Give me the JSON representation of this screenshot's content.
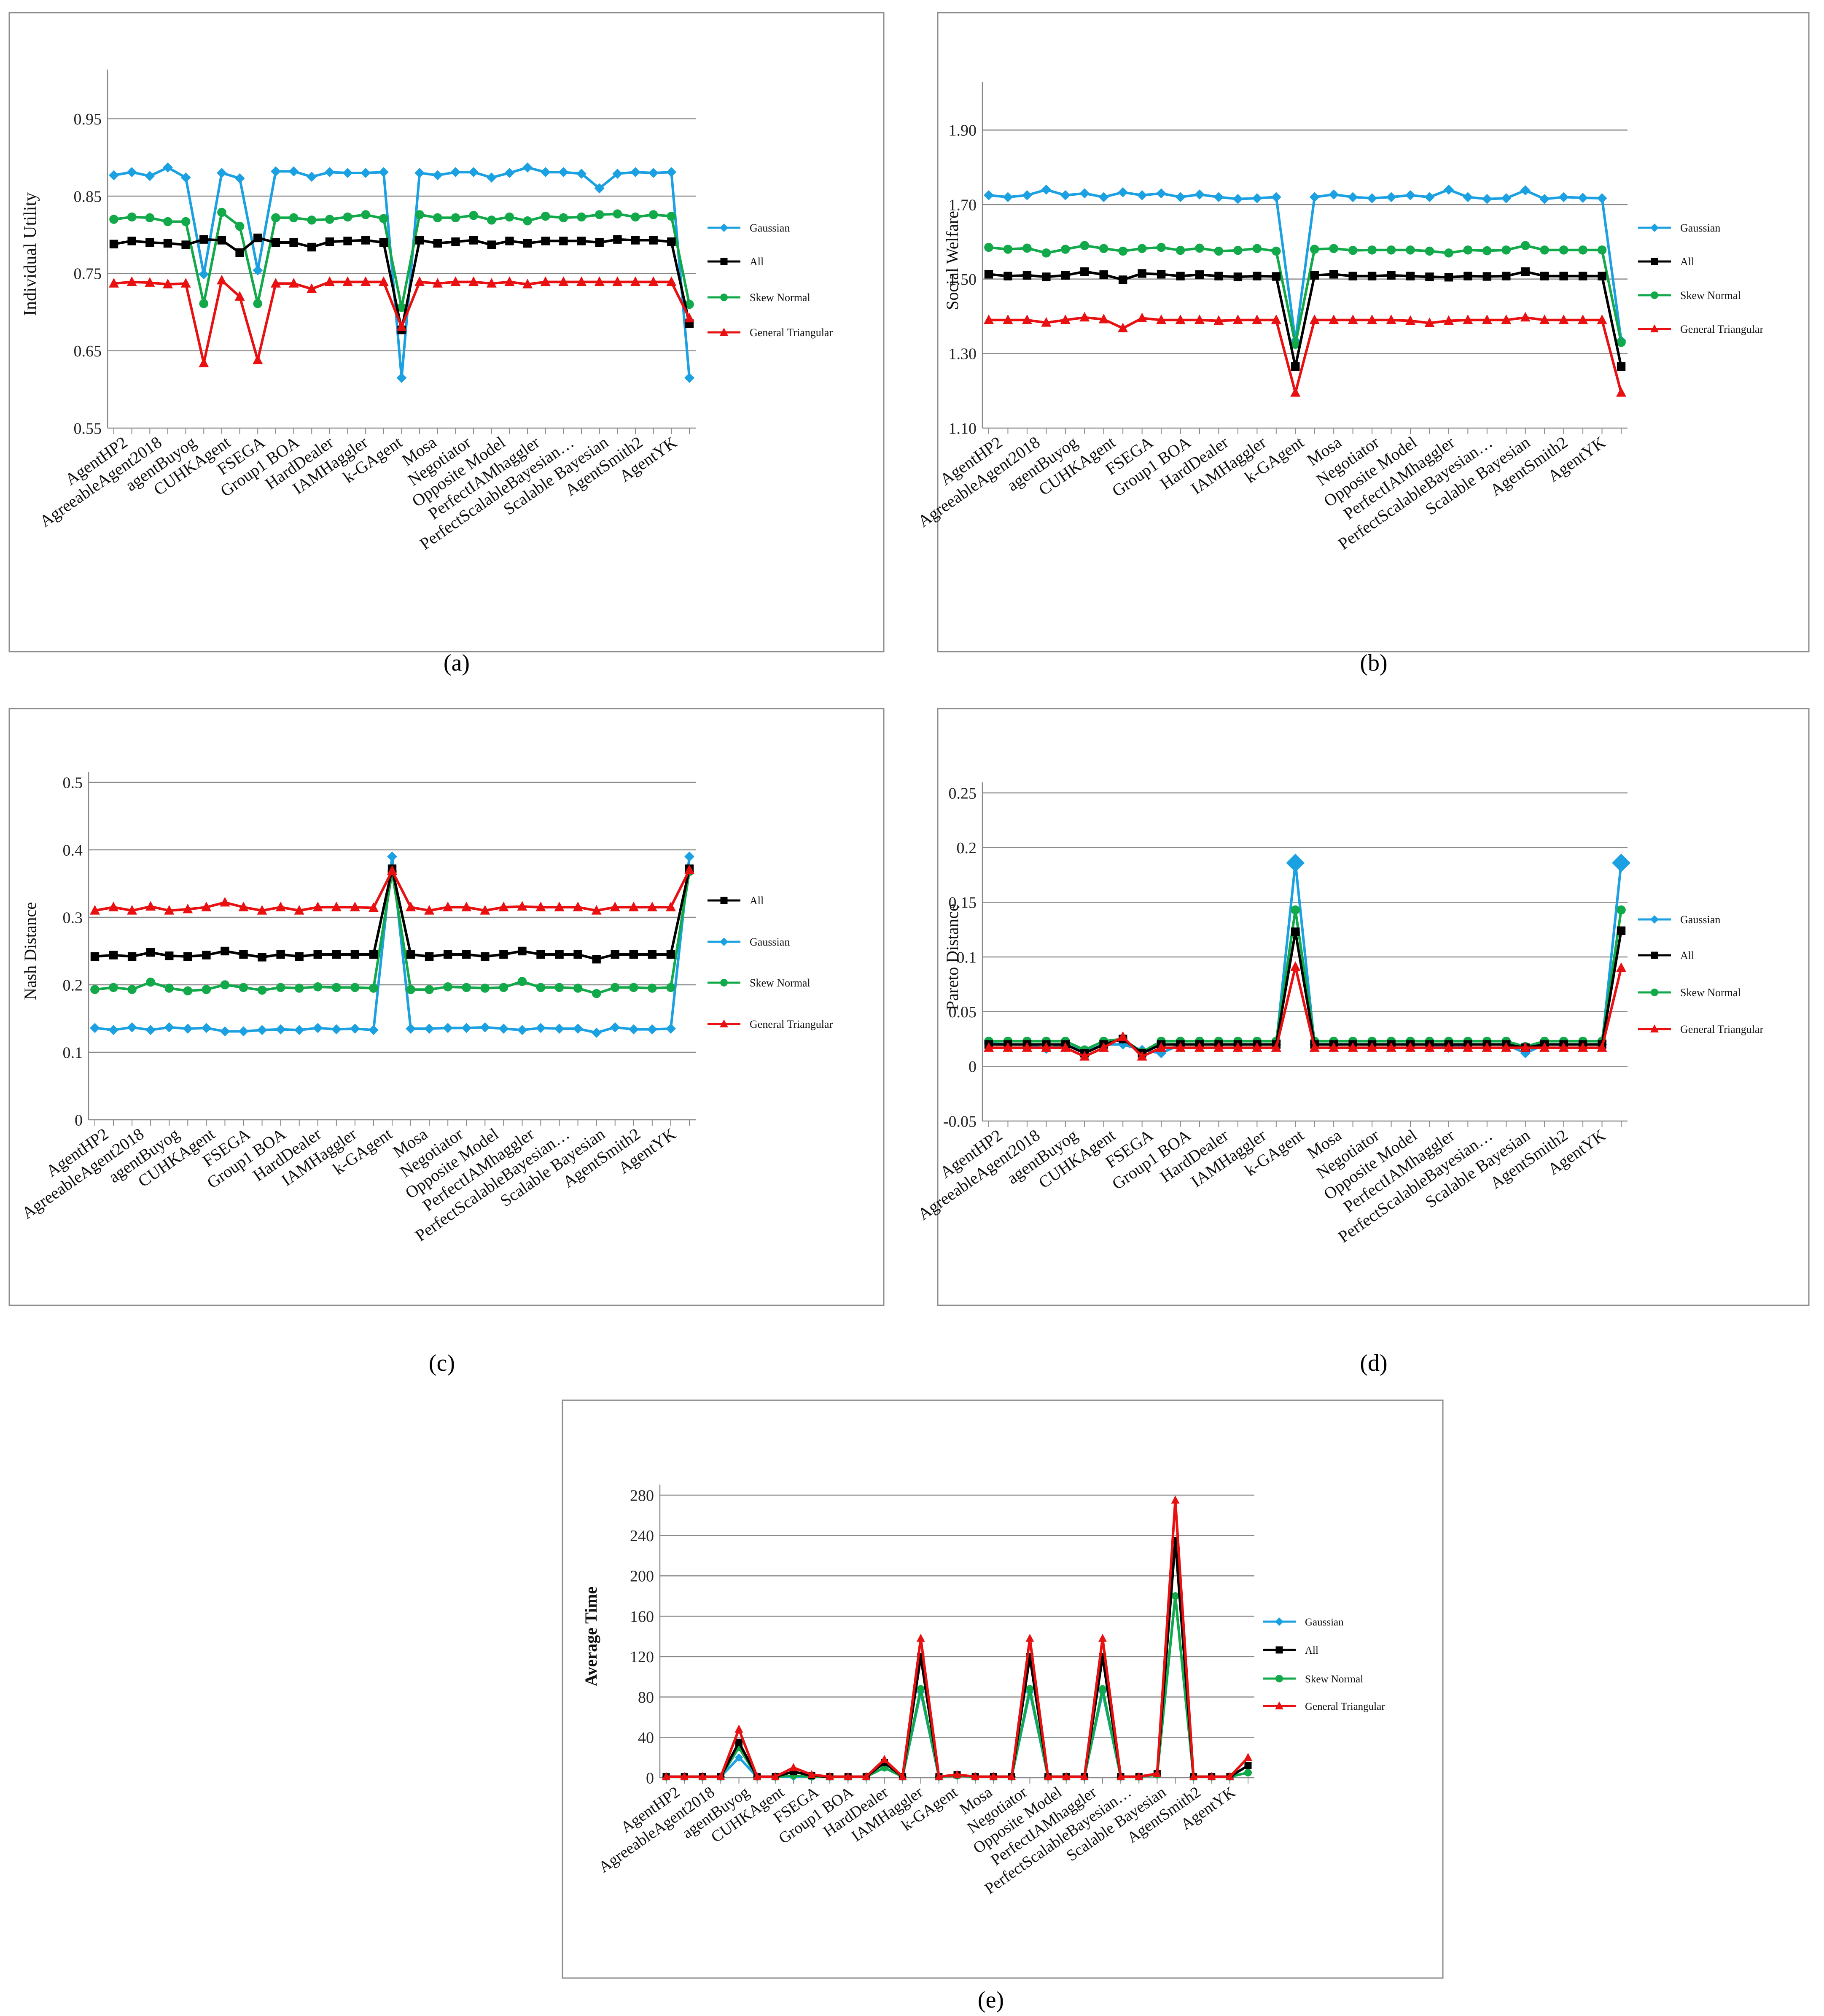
{
  "agents": [
    "AgentHP2",
    "AgreeableAgent2018",
    "agentBuyog",
    "CUHKAgent",
    "FSEGA",
    "Group1 BOA",
    "HardDealer",
    "IAMHaggler",
    "k-GAgent",
    "Mosa",
    "Negotiator",
    "Opposite Model",
    "PerfectIAMhaggler",
    "PerfectScalableBayesian…",
    "Scalable Bayesian",
    "AgentSmith2",
    "AgentYK"
  ],
  "colors": {
    "Gaussian": "#1ba1e2",
    "All": "#000000",
    "Skew Normal": "#12a94a",
    "General Triangular": "#e81010"
  },
  "chart_data": [
    {
      "id": "a",
      "type": "line",
      "caption": "(a)",
      "ylabel": "Individual Utility",
      "ylim": [
        0.55,
        1.0
      ],
      "yticks": [
        "0.95",
        "0.85",
        "0.75",
        "0.65",
        "0.55"
      ],
      "legend": [
        "Gaussian",
        "All",
        "Skew Normal",
        "General Triangular"
      ],
      "series": [
        {
          "name": "Gaussian",
          "values": [
            0.877,
            0.881,
            0.876,
            0.887,
            0.874,
            0.749,
            0.88,
            0.873,
            0.754,
            0.882,
            0.882,
            0.875,
            0.881,
            0.88,
            0.88,
            0.881,
            0.615,
            0.88,
            0.877,
            0.881,
            0.881,
            0.874,
            0.88,
            0.887,
            0.881,
            0.881,
            0.879,
            0.86,
            0.879,
            0.881,
            0.88,
            0.881,
            0.615
          ]
        },
        {
          "name": "All",
          "values": [
            0.788,
            0.792,
            0.79,
            0.789,
            0.787,
            0.794,
            0.793,
            0.777,
            0.796,
            0.79,
            0.79,
            0.784,
            0.791,
            0.792,
            0.793,
            0.79,
            0.677,
            0.793,
            0.789,
            0.791,
            0.793,
            0.787,
            0.792,
            0.789,
            0.792,
            0.792,
            0.792,
            0.79,
            0.794,
            0.793,
            0.793,
            0.791,
            0.685
          ]
        },
        {
          "name": "Skew Normal",
          "values": [
            0.82,
            0.823,
            0.822,
            0.817,
            0.817,
            0.711,
            0.829,
            0.811,
            0.711,
            0.822,
            0.822,
            0.819,
            0.82,
            0.823,
            0.826,
            0.821,
            0.706,
            0.826,
            0.822,
            0.822,
            0.825,
            0.819,
            0.823,
            0.818,
            0.824,
            0.822,
            0.823,
            0.826,
            0.827,
            0.823,
            0.826,
            0.824,
            0.71
          ]
        },
        {
          "name": "General Triangular",
          "values": [
            0.737,
            0.739,
            0.738,
            0.736,
            0.737,
            0.634,
            0.741,
            0.72,
            0.638,
            0.737,
            0.737,
            0.73,
            0.739,
            0.739,
            0.739,
            0.739,
            0.681,
            0.739,
            0.737,
            0.739,
            0.739,
            0.737,
            0.739,
            0.736,
            0.739,
            0.739,
            0.739,
            0.739,
            0.739,
            0.739,
            0.739,
            0.739,
            0.692
          ]
        }
      ]
    },
    {
      "id": "b",
      "type": "line",
      "caption": "(b)",
      "ylabel": "Social Welfare",
      "ylim": [
        1.1,
        2.0
      ],
      "yticks": [
        "1.90",
        "1.70",
        "1.50",
        "1.30",
        "1.10"
      ],
      "legend": [
        "Gaussian",
        "All",
        "Skew Normal",
        "General Triangular"
      ],
      "series": [
        {
          "name": "Gaussian",
          "values": [
            1.725,
            1.72,
            1.725,
            1.74,
            1.725,
            1.73,
            1.72,
            1.733,
            1.725,
            1.73,
            1.72,
            1.727,
            1.72,
            1.715,
            1.717,
            1.72,
            1.335,
            1.72,
            1.727,
            1.72,
            1.717,
            1.72,
            1.725,
            1.72,
            1.74,
            1.72,
            1.715,
            1.717,
            1.738,
            1.715,
            1.72,
            1.718,
            1.717,
            1.335
          ]
        },
        {
          "name": "All",
          "values": [
            1.513,
            1.508,
            1.51,
            1.506,
            1.51,
            1.52,
            1.512,
            1.498,
            1.515,
            1.513,
            1.508,
            1.512,
            1.508,
            1.506,
            1.508,
            1.507,
            1.265,
            1.51,
            1.513,
            1.508,
            1.508,
            1.51,
            1.508,
            1.506,
            1.505,
            1.508,
            1.507,
            1.508,
            1.52,
            1.508,
            1.508,
            1.508,
            1.508,
            1.265
          ]
        },
        {
          "name": "Skew Normal",
          "values": [
            1.585,
            1.58,
            1.583,
            1.57,
            1.58,
            1.59,
            1.582,
            1.575,
            1.582,
            1.585,
            1.577,
            1.583,
            1.575,
            1.577,
            1.582,
            1.575,
            1.325,
            1.58,
            1.582,
            1.577,
            1.578,
            1.578,
            1.578,
            1.575,
            1.57,
            1.578,
            1.576,
            1.578,
            1.59,
            1.578,
            1.578,
            1.578,
            1.578,
            1.33
          ]
        },
        {
          "name": "General Triangular",
          "values": [
            1.39,
            1.39,
            1.39,
            1.383,
            1.39,
            1.397,
            1.392,
            1.368,
            1.395,
            1.39,
            1.39,
            1.39,
            1.388,
            1.39,
            1.39,
            1.39,
            1.195,
            1.39,
            1.39,
            1.39,
            1.39,
            1.39,
            1.388,
            1.382,
            1.388,
            1.39,
            1.39,
            1.39,
            1.397,
            1.39,
            1.39,
            1.39,
            1.39,
            1.195
          ]
        }
      ]
    },
    {
      "id": "c",
      "type": "line",
      "caption": "(c)",
      "ylabel": "Nash Distance",
      "ylim": [
        0,
        0.5
      ],
      "yticks": [
        "0.5",
        "0.4",
        "0.3",
        "0.2",
        "0.1",
        "0"
      ],
      "legend": [
        "All",
        "Gaussian",
        "Skew Normal",
        "General Triangular"
      ],
      "series": [
        {
          "name": "Gaussian",
          "values": [
            0.136,
            0.133,
            0.137,
            0.133,
            0.137,
            0.135,
            0.136,
            0.131,
            0.131,
            0.133,
            0.134,
            0.133,
            0.136,
            0.134,
            0.135,
            0.133,
            0.39,
            0.135,
            0.135,
            0.136,
            0.136,
            0.137,
            0.135,
            0.133,
            0.136,
            0.135,
            0.135,
            0.129,
            0.137,
            0.134,
            0.134,
            0.135,
            0.39
          ]
        },
        {
          "name": "All",
          "values": [
            0.242,
            0.244,
            0.242,
            0.248,
            0.243,
            0.242,
            0.244,
            0.25,
            0.245,
            0.241,
            0.245,
            0.242,
            0.245,
            0.245,
            0.245,
            0.245,
            0.372,
            0.245,
            0.242,
            0.245,
            0.245,
            0.242,
            0.245,
            0.25,
            0.245,
            0.245,
            0.245,
            0.238,
            0.245,
            0.245,
            0.245,
            0.245,
            0.372
          ]
        },
        {
          "name": "Skew Normal",
          "values": [
            0.193,
            0.196,
            0.193,
            0.204,
            0.195,
            0.191,
            0.193,
            0.2,
            0.196,
            0.192,
            0.196,
            0.195,
            0.197,
            0.196,
            0.196,
            0.195,
            0.368,
            0.193,
            0.193,
            0.197,
            0.196,
            0.195,
            0.196,
            0.205,
            0.196,
            0.196,
            0.195,
            0.187,
            0.196,
            0.196,
            0.195,
            0.196,
            0.368
          ]
        },
        {
          "name": "General Triangular",
          "values": [
            0.31,
            0.315,
            0.31,
            0.316,
            0.31,
            0.312,
            0.315,
            0.322,
            0.315,
            0.31,
            0.315,
            0.31,
            0.315,
            0.315,
            0.315,
            0.314,
            0.369,
            0.315,
            0.31,
            0.315,
            0.315,
            0.31,
            0.315,
            0.316,
            0.315,
            0.315,
            0.315,
            0.31,
            0.315,
            0.315,
            0.315,
            0.315,
            0.37
          ]
        }
      ]
    },
    {
      "id": "d",
      "type": "line",
      "caption": "(d)",
      "ylabel": "Pareto Distance",
      "ylim": [
        -0.05,
        0.25
      ],
      "yticks": [
        "0.25",
        "0.2",
        "0.15",
        "0.1",
        "0.05",
        "0",
        "-0.05"
      ],
      "legend": [
        "Gaussian",
        "All",
        "Skew Normal",
        "General Triangular"
      ],
      "series": [
        {
          "name": "Gaussian",
          "values": [
            0.021,
            0.02,
            0.02,
            0.016,
            0.02,
            0.013,
            0.02,
            0.02,
            0.015,
            0.012,
            0.02,
            0.02,
            0.02,
            0.02,
            0.02,
            0.02,
            0.186,
            0.02,
            0.02,
            0.02,
            0.02,
            0.02,
            0.02,
            0.02,
            0.017,
            0.02,
            0.02,
            0.02,
            0.012,
            0.02,
            0.02,
            0.02,
            0.02,
            0.186
          ]
        },
        {
          "name": "All",
          "values": [
            0.02,
            0.02,
            0.02,
            0.02,
            0.02,
            0.012,
            0.02,
            0.025,
            0.012,
            0.02,
            0.02,
            0.02,
            0.02,
            0.02,
            0.02,
            0.02,
            0.123,
            0.02,
            0.02,
            0.02,
            0.02,
            0.02,
            0.02,
            0.02,
            0.02,
            0.02,
            0.02,
            0.02,
            0.017,
            0.02,
            0.02,
            0.02,
            0.02,
            0.124
          ]
        },
        {
          "name": "Skew Normal",
          "values": [
            0.023,
            0.023,
            0.023,
            0.023,
            0.023,
            0.015,
            0.023,
            0.025,
            0.013,
            0.023,
            0.023,
            0.023,
            0.023,
            0.023,
            0.023,
            0.023,
            0.143,
            0.023,
            0.023,
            0.023,
            0.023,
            0.023,
            0.023,
            0.023,
            0.023,
            0.023,
            0.023,
            0.023,
            0.018,
            0.023,
            0.023,
            0.023,
            0.023,
            0.143
          ]
        },
        {
          "name": "General Triangular",
          "values": [
            0.017,
            0.017,
            0.017,
            0.017,
            0.017,
            0.009,
            0.017,
            0.027,
            0.009,
            0.017,
            0.017,
            0.017,
            0.017,
            0.017,
            0.017,
            0.017,
            0.091,
            0.017,
            0.017,
            0.017,
            0.017,
            0.017,
            0.017,
            0.017,
            0.017,
            0.017,
            0.017,
            0.017,
            0.017,
            0.017,
            0.017,
            0.017,
            0.017,
            0.09
          ]
        }
      ]
    },
    {
      "id": "e",
      "type": "line",
      "caption": "(e)",
      "ylabel": "Average Time",
      "ylim": [
        0,
        280
      ],
      "yticks": [
        "280",
        "240",
        "200",
        "160",
        "120",
        "80",
        "40",
        "0"
      ],
      "legend": [
        "Gaussian",
        "All",
        "Skew Normal",
        "General Triangular"
      ],
      "series": [
        {
          "name": "Gaussian",
          "values": [
            1,
            1,
            1,
            1,
            20,
            1,
            1,
            1,
            1,
            1,
            1,
            1,
            10,
            1,
            85,
            1,
            2,
            1,
            1,
            1,
            85,
            1,
            1,
            1,
            85,
            1,
            1,
            3,
            180,
            1,
            1,
            1,
            5
          ]
        },
        {
          "name": "All",
          "values": [
            1,
            1,
            1,
            1,
            35,
            1,
            1,
            6,
            2,
            1,
            1,
            1,
            15,
            1,
            120,
            1,
            3,
            1,
            1,
            1,
            120,
            1,
            1,
            1,
            120,
            1,
            1,
            4,
            235,
            1,
            1,
            1,
            12
          ]
        },
        {
          "name": "Skew Normal",
          "values": [
            1,
            1,
            1,
            1,
            30,
            1,
            1,
            2,
            1,
            1,
            1,
            1,
            10,
            1,
            88,
            1,
            2,
            1,
            1,
            1,
            88,
            1,
            1,
            1,
            88,
            1,
            1,
            3,
            180,
            1,
            1,
            1,
            5
          ]
        },
        {
          "name": "General Triangular",
          "values": [
            1,
            1,
            1,
            1,
            48,
            1,
            1,
            10,
            3,
            1,
            1,
            1,
            18,
            1,
            138,
            1,
            3,
            1,
            1,
            1,
            138,
            1,
            1,
            1,
            138,
            1,
            1,
            4,
            275,
            1,
            1,
            1,
            20
          ]
        }
      ]
    }
  ]
}
